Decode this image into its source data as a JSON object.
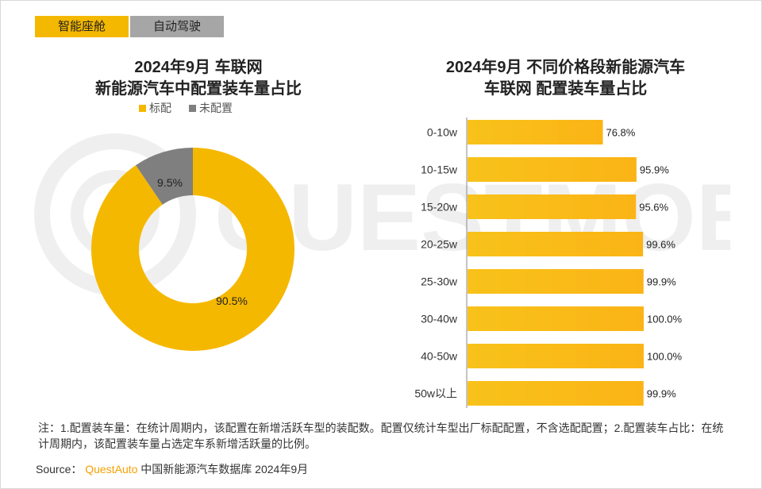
{
  "tabs": [
    {
      "label": "智能座舱",
      "active": true
    },
    {
      "label": "自动驾驶",
      "active": false
    }
  ],
  "colors": {
    "standard": "#f5b800",
    "not_configured": "#7f7f7f",
    "tab_inactive": "#a6a6a6"
  },
  "watermark_text": "QUESTMOBILE",
  "chart_data": [
    {
      "type": "pie",
      "title_line1": "2024年9月 车联网",
      "title_line2": "新能源汽车中配置装车量占比",
      "legend": [
        "标配",
        "未配置"
      ],
      "slices": [
        {
          "name": "标配",
          "value": 90.5,
          "label": "90.5%"
        },
        {
          "name": "未配置",
          "value": 9.5,
          "label": "9.5%"
        }
      ]
    },
    {
      "type": "bar",
      "orientation": "horizontal",
      "title_line1": "2024年9月 不同价格段新能源汽车",
      "title_line2": "车联网 配置装车量占比",
      "categories": [
        "0-10w",
        "10-15w",
        "15-20w",
        "20-25w",
        "25-30w",
        "30-40w",
        "40-50w",
        "50w以上"
      ],
      "values": [
        76.8,
        95.9,
        95.6,
        99.6,
        99.9,
        100.0,
        100.0,
        99.9
      ],
      "labels": [
        "76.8%",
        "95.9%",
        "95.6%",
        "99.6%",
        "99.9%",
        "100.0%",
        "100.0%",
        "99.9%"
      ],
      "xlim": [
        0,
        100
      ]
    }
  ],
  "footer": {
    "note": "注：1.配置装车量：在统计周期内，该配置在新增活跃车型的装配数。配置仅统计车型出厂标配配置，不含选配配置；2.配置装车占比：在统计周期内，该配置装车量占选定车系新增活跃量的比例。",
    "source_prefix": "Source：",
    "source_brand": "QuestAuto",
    "source_suffix": "中国新能源汽车数据库 2024年9月"
  }
}
